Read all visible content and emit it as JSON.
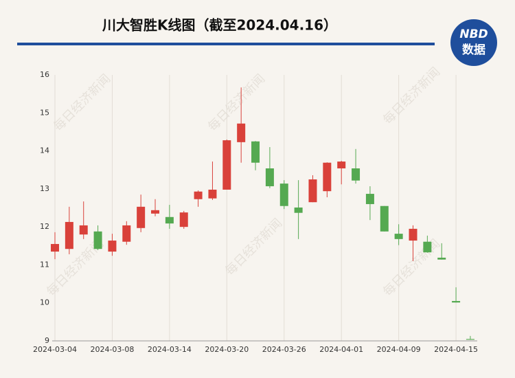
{
  "chart_data": {
    "type": "candlestick",
    "title": "川大智胜K线图（截至2024.04.16）",
    "logo": {
      "top": "NBD",
      "bottom": "数据"
    },
    "watermark": "每日经济新闻",
    "categories": [
      "2024-03-04",
      null,
      null,
      null,
      "2024-03-08",
      null,
      null,
      null,
      "2024-03-14",
      null,
      null,
      null,
      "2024-03-20",
      null,
      null,
      null,
      "2024-03-26",
      null,
      null,
      null,
      "2024-04-01",
      null,
      null,
      null,
      "2024-04-09",
      null,
      null,
      null,
      "2024-04-15",
      null
    ],
    "open": [
      11.35,
      11.42,
      11.8,
      11.88,
      11.35,
      11.61,
      11.97,
      12.35,
      12.26,
      12.0,
      12.73,
      12.75,
      12.98,
      14.23,
      14.25,
      13.54,
      13.14,
      12.51,
      12.65,
      12.94,
      13.54,
      13.54,
      12.87,
      12.55,
      11.82,
      11.64,
      11.61,
      11.19,
      10.05,
      9.05
    ],
    "high": [
      11.86,
      12.53,
      12.67,
      12.04,
      11.82,
      12.15,
      12.85,
      12.73,
      12.58,
      12.42,
      12.96,
      13.72,
      14.3,
      15.67,
      14.26,
      14.1,
      13.23,
      13.23,
      13.36,
      13.7,
      13.74,
      14.05,
      13.07,
      12.55,
      12.07,
      12.04,
      11.77,
      11.57,
      10.41,
      9.13
    ],
    "low": [
      11.15,
      11.28,
      11.68,
      11.39,
      11.24,
      11.53,
      11.86,
      12.28,
      11.95,
      11.95,
      12.53,
      12.71,
      12.98,
      13.69,
      13.49,
      13.02,
      12.47,
      11.68,
      12.65,
      12.78,
      13.12,
      13.14,
      12.18,
      11.88,
      11.52,
      11.1,
      11.32,
      11.14,
      10.01,
      9.03
    ],
    "close": [
      11.55,
      12.13,
      12.04,
      11.42,
      11.64,
      12.04,
      12.53,
      12.44,
      12.09,
      12.38,
      12.93,
      12.98,
      14.28,
      14.72,
      13.69,
      13.07,
      12.55,
      12.37,
      13.25,
      13.69,
      13.72,
      13.22,
      12.6,
      11.88,
      11.68,
      11.95,
      11.33,
      11.14,
      10.01,
      9.03
    ],
    "up_color": "#d9413a",
    "down_color": "#55a951",
    "ylim": [
      9,
      16
    ],
    "yticks": [
      9,
      10,
      11,
      12,
      13,
      14,
      15,
      16
    ],
    "grid": true
  }
}
